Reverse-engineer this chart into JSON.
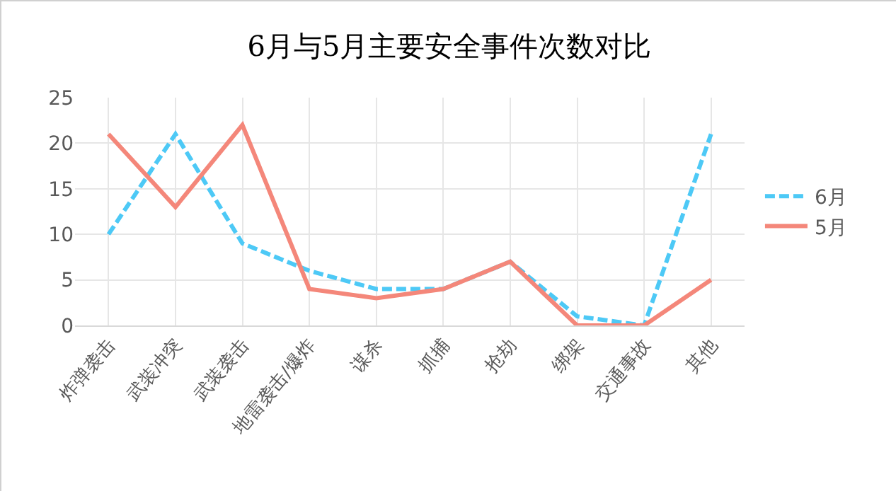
{
  "chart_data": {
    "type": "line",
    "title": "6月与5月主要安全事件次数对比",
    "categories": [
      "炸弹袭击",
      "武装冲突",
      "武装袭击",
      "地雷袭击/爆炸",
      "谋杀",
      "抓捕",
      "抢劫",
      "绑架",
      "交通事故",
      "其他"
    ],
    "series": [
      {
        "name": "6月",
        "color": "#4dc9f6",
        "line_style": "dashed",
        "values": [
          10,
          21,
          9,
          6,
          4,
          4,
          7,
          1,
          0,
          21
        ]
      },
      {
        "name": "5月",
        "color": "#f4877a",
        "line_style": "solid",
        "values": [
          21,
          13,
          22,
          4,
          3,
          4,
          7,
          0,
          0,
          5
        ]
      }
    ],
    "ylim": [
      0,
      25
    ],
    "yticks": [
      0,
      5,
      10,
      15,
      20,
      25
    ],
    "grid": true,
    "legend": "right",
    "marker": "none"
  }
}
